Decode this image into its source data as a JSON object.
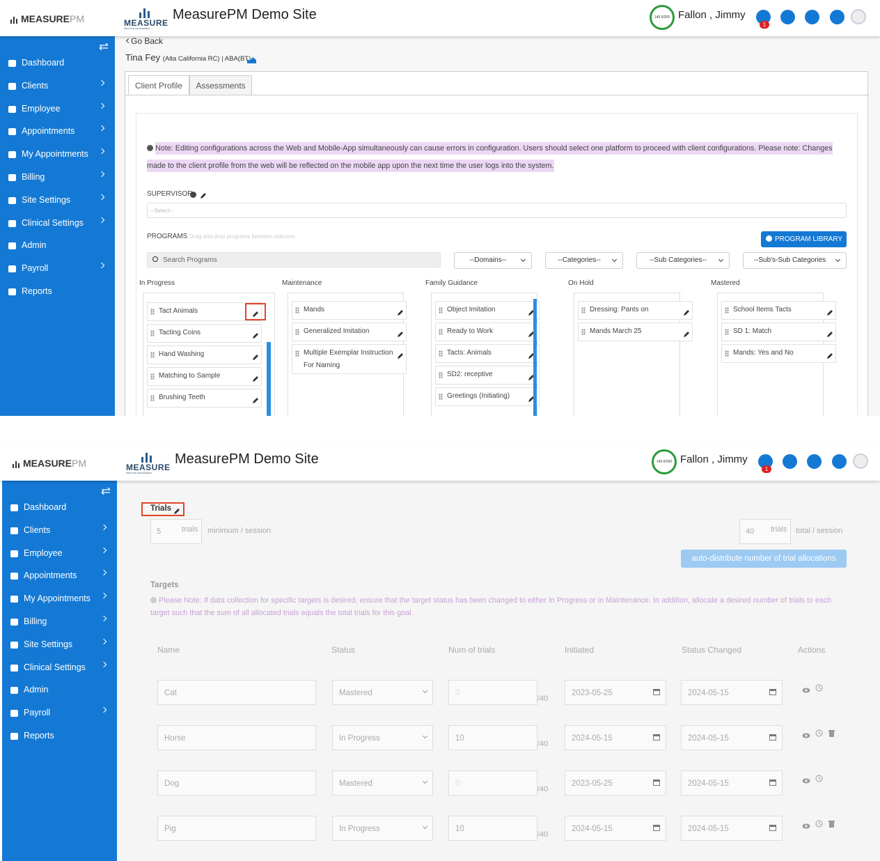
{
  "header": {
    "logo": "MEASURE",
    "logo_accent": "PM",
    "site_logo": "MEASURE",
    "site_logo_sub": "PRACTICE MANAGEMENT",
    "site_title": "MeasurePM Demo Site",
    "gauge": "149.5/200",
    "user": "Fallon , Jimmy",
    "notifications": "1"
  },
  "nav": [
    {
      "label": "Dashboard",
      "submenu": false
    },
    {
      "label": "Clients",
      "submenu": true
    },
    {
      "label": "Employee",
      "submenu": true
    },
    {
      "label": "Appointments",
      "submenu": true
    },
    {
      "label": "My Appointments",
      "submenu": true
    },
    {
      "label": "Billing",
      "submenu": true
    },
    {
      "label": "Site Settings",
      "submenu": true
    },
    {
      "label": "Clinical Settings",
      "submenu": true
    },
    {
      "label": "Admin",
      "submenu": false
    },
    {
      "label": "Payroll",
      "submenu": true
    },
    {
      "label": "Reports",
      "submenu": false
    }
  ],
  "profile_screen": {
    "go_back": "Go Back",
    "client_name": "Tina Fey",
    "client_detail": "(Alta California RC) | ABA(BT)",
    "tabs": [
      "Client Profile",
      "Assessments"
    ],
    "note": "Note: Editing configurations across the Web and Mobile-App simultaneously can cause errors in configuration. Users should select one platform to proceed with client configurations. Please note: Changes made to the client profile from the web will be reflected on the mobile app upon the next time the user logs into the system.",
    "supervisor_label": "SUPERVISOR",
    "supervisor_placeholder": "--Select--",
    "programs_label": "PROGRAMS",
    "programs_hint": "Drag and drop programs between statuses",
    "library_button": "PROGRAM LIBRARY",
    "search_placeholder": "Search Programs",
    "filters": [
      "--Domains--",
      "--Categories--",
      "--Sub Categories--",
      "--Sub's-Sub Categories"
    ],
    "columns": [
      {
        "title": "In Progress",
        "programs": [
          "Tact Animals",
          "Tacting Coins",
          "Hand Washing",
          "Matching to Sample",
          "Brushing Teeth"
        ]
      },
      {
        "title": "Maintenance",
        "programs": [
          "Mands",
          "Generalized Imitation",
          "Multiple Exemplar Instruction For Naming"
        ]
      },
      {
        "title": "Family Guidance",
        "programs": [
          "Object Imitation",
          "Ready to Work",
          "Tacts: Animals",
          "SD2: receptive",
          "Greetings (Initiating)"
        ]
      },
      {
        "title": "On Hold",
        "programs": [
          "Dressing: Pants on",
          "Mands March 25"
        ]
      },
      {
        "title": "Mastered",
        "programs": [
          "School Items Tacts",
          "SD 1: Match",
          "Mands: Yes and No"
        ]
      }
    ]
  },
  "trials_screen": {
    "trials_label": "Trials",
    "min_value": "5",
    "min_unit": "trials",
    "min_caption": "minimum / session",
    "total_value": "40",
    "total_unit": "trials",
    "total_caption": "total / session",
    "auto_button": "auto-distribute number of trial allocations",
    "targets_label": "Targets",
    "targets_note": "Please Note: If data collection for specific targets is desired, ensure that the target status has been changed to either In Progress or in Maintenance. In addition, allocate a desired number of trials to each target such that the sum of all allocated trials equals the total trials for this goal.",
    "columns": [
      "Name",
      "Status",
      "Num of trials",
      "Initiated",
      "Status Changed",
      "Actions"
    ],
    "rows": [
      {
        "name": "Cat",
        "status": "Mastered",
        "trials": "0",
        "max": "/40",
        "initiated": "2023-05-25",
        "changed": "2024-05-15",
        "delete": false
      },
      {
        "name": "Horse",
        "status": "In Progress",
        "trials": "10",
        "max": "/40",
        "initiated": "2024-05-15",
        "changed": "2024-05-15",
        "delete": true
      },
      {
        "name": "Dog",
        "status": "Mastered",
        "trials": "0",
        "max": "/40",
        "initiated": "2023-05-25",
        "changed": "2024-05-15",
        "delete": false
      },
      {
        "name": "Pig",
        "status": "In Progress",
        "trials": "10",
        "max": "/40",
        "initiated": "2024-05-15",
        "changed": "2024-05-15",
        "delete": true
      }
    ]
  }
}
